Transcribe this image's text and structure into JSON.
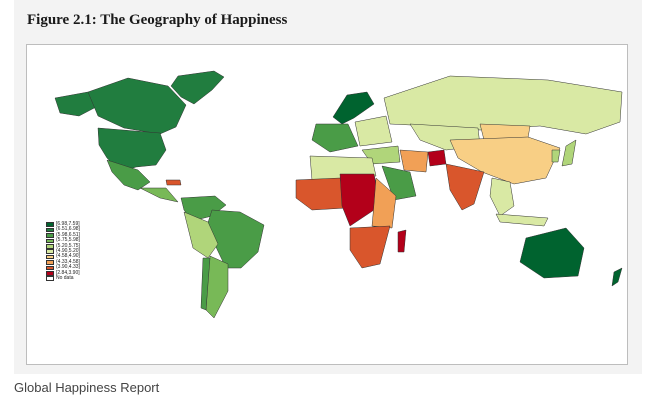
{
  "figure": {
    "title": "Figure 2.1: The Geography of Happiness"
  },
  "legend": {
    "items": [
      {
        "label": "[6.98,7.59]",
        "color": "#00632f"
      },
      {
        "label": "(6.51,6.98]",
        "color": "#217d3f"
      },
      {
        "label": "(5.98,6.51]",
        "color": "#4a9c47"
      },
      {
        "label": "(5.75,5.98]",
        "color": "#78b957"
      },
      {
        "label": "(5.20,5.75]",
        "color": "#b0d57a"
      },
      {
        "label": "(4.90,5.20]",
        "color": "#d9e9a4"
      },
      {
        "label": "(4.58,4.90]",
        "color": "#f8cf85"
      },
      {
        "label": "(4.33,4.58]",
        "color": "#f1a056"
      },
      {
        "label": "(3.90,4.33]",
        "color": "#d9562c"
      },
      {
        "label": "[2.84,3.90]",
        "color": "#b3001a"
      },
      {
        "label": "No data",
        "color": "#ffffff"
      }
    ]
  },
  "caption": "Global Happiness Report"
}
